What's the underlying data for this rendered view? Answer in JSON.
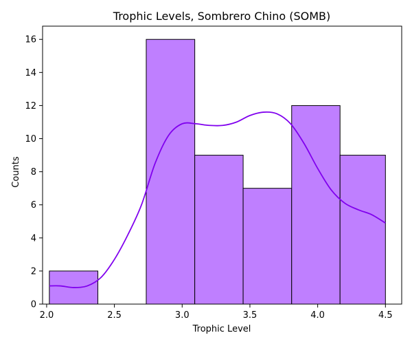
{
  "chart_data": {
    "type": "bar",
    "title": "Trophic Levels, Sombrero Chino (SOMB)",
    "xlabel": "Trophic Level",
    "ylabel": "Counts",
    "xlim": [
      1.97,
      4.62
    ],
    "ylim": [
      0,
      16.8
    ],
    "xticks": [
      2.0,
      2.5,
      3.0,
      3.5,
      4.0,
      4.5
    ],
    "xtick_labels": [
      "2.0",
      "2.5",
      "3.0",
      "3.5",
      "4.0",
      "4.5"
    ],
    "yticks": [
      0,
      2,
      4,
      6,
      8,
      10,
      12,
      14,
      16
    ],
    "ytick_labels": [
      "0",
      "2",
      "4",
      "6",
      "8",
      "10",
      "12",
      "14",
      "16"
    ],
    "grid": false,
    "bins": [
      {
        "x0": 2.02,
        "x1": 2.378,
        "count": 2
      },
      {
        "x0": 2.378,
        "x1": 2.735,
        "count": 0
      },
      {
        "x0": 2.735,
        "x1": 3.093,
        "count": 16
      },
      {
        "x0": 3.093,
        "x1": 3.45,
        "count": 9
      },
      {
        "x0": 3.45,
        "x1": 3.808,
        "count": 7
      },
      {
        "x0": 3.808,
        "x1": 4.165,
        "count": 12
      },
      {
        "x0": 4.165,
        "x1": 4.5,
        "count": 9
      }
    ],
    "kde": {
      "name": "density",
      "x": [
        2.02,
        2.1,
        2.2,
        2.3,
        2.4,
        2.5,
        2.6,
        2.7,
        2.8,
        2.9,
        3.0,
        3.1,
        3.2,
        3.3,
        3.4,
        3.5,
        3.6,
        3.7,
        3.8,
        3.9,
        4.0,
        4.1,
        4.2,
        4.3,
        4.4,
        4.5
      ],
      "y": [
        1.1,
        1.1,
        1.0,
        1.1,
        1.6,
        2.7,
        4.2,
        6.0,
        8.5,
        10.2,
        10.9,
        10.9,
        10.8,
        10.8,
        11.0,
        11.4,
        11.6,
        11.5,
        10.9,
        9.7,
        8.2,
        6.9,
        6.1,
        5.7,
        5.4,
        4.9
      ]
    },
    "colors": {
      "bar_fill": "#bf7fff",
      "bar_edge": "#000000",
      "kde_line": "#8000ee",
      "axis": "#000000"
    }
  }
}
